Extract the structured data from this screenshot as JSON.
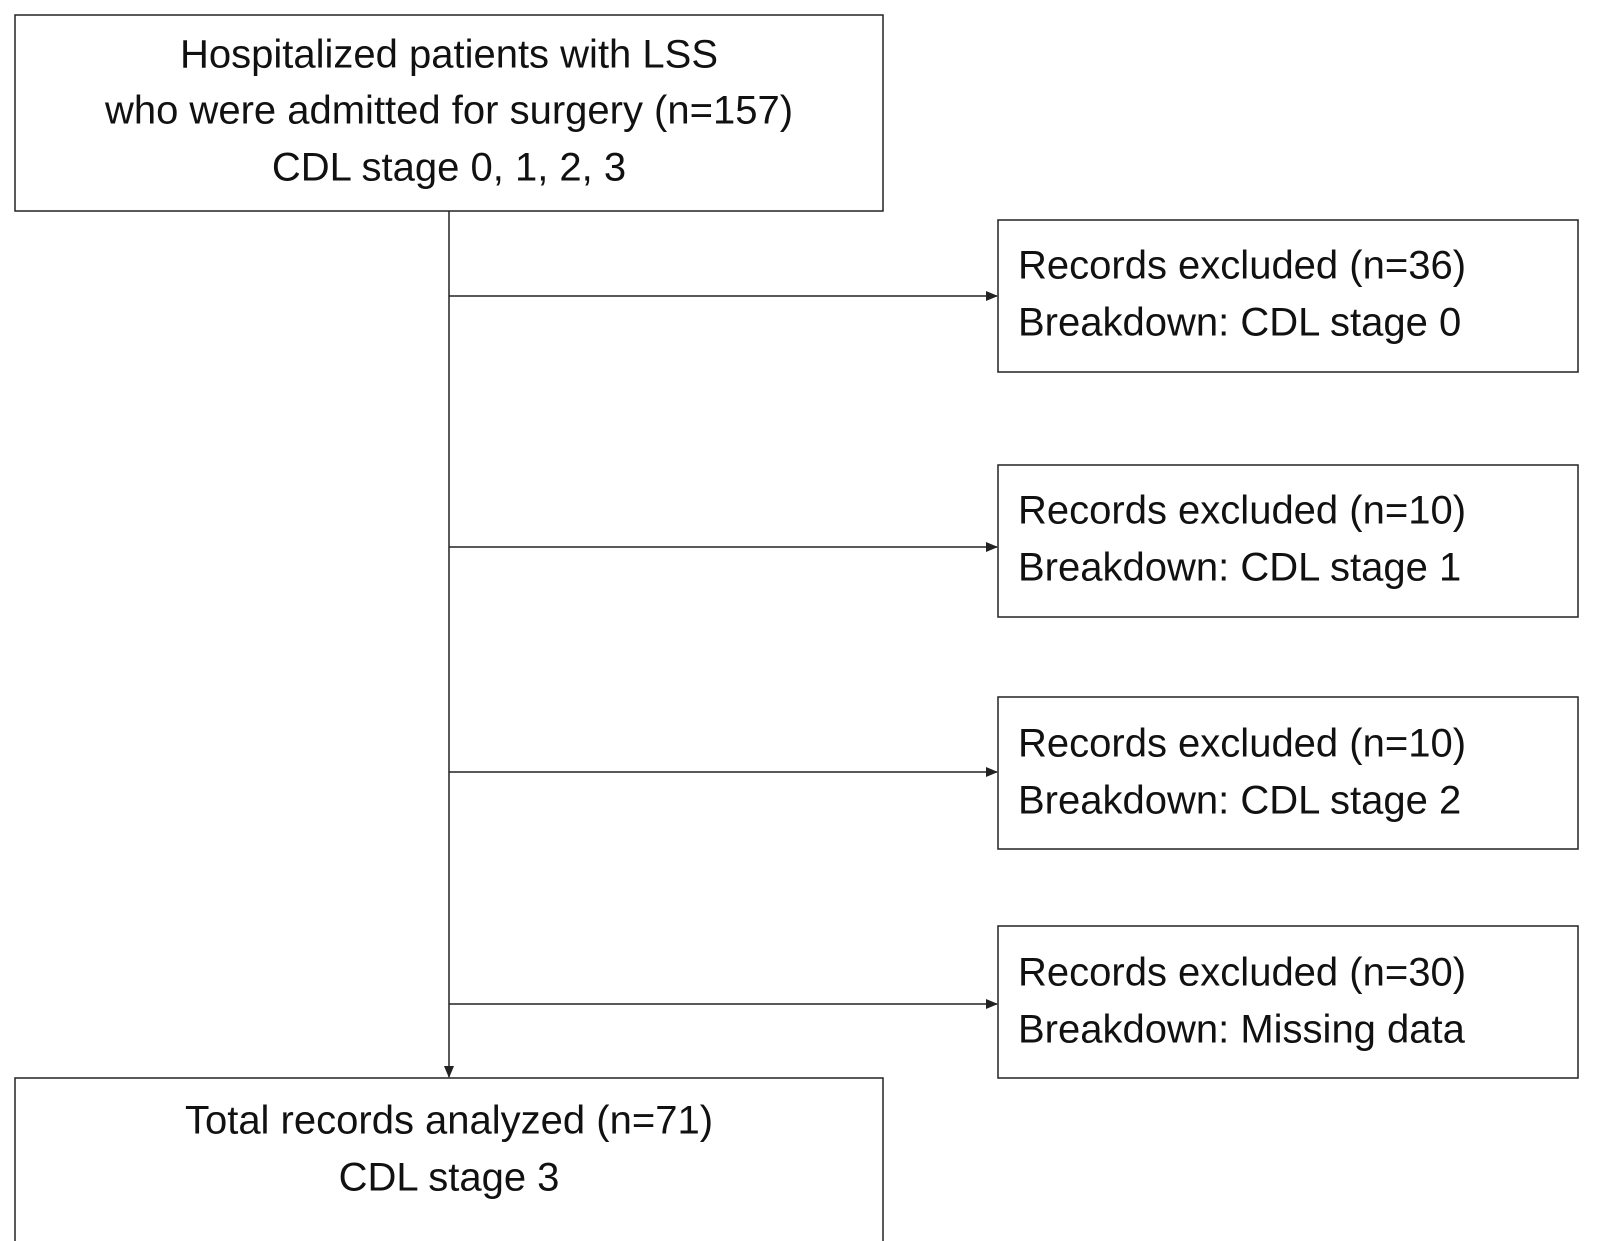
{
  "nodes": [
    {
      "lines": [
        "Hospitalized patients with LSS",
        "who were admitted for surgery (n=157)",
        "CDL stage 0, 1, 2, 3"
      ]
    },
    {
      "lines": [
        "Records excluded (n=36)",
        "Breakdown: CDL stage 0"
      ]
    },
    {
      "lines": [
        "Records excluded (n=10)",
        "Breakdown: CDL stage 1"
      ]
    },
    {
      "lines": [
        "Records excluded (n=10)",
        "Breakdown: CDL stage 2"
      ]
    },
    {
      "lines": [
        "Records excluded (n=30)",
        "Breakdown: Missing data"
      ]
    },
    {
      "lines": [
        "Total records analyzed (n=71)",
        "CDL stage 3"
      ]
    }
  ]
}
